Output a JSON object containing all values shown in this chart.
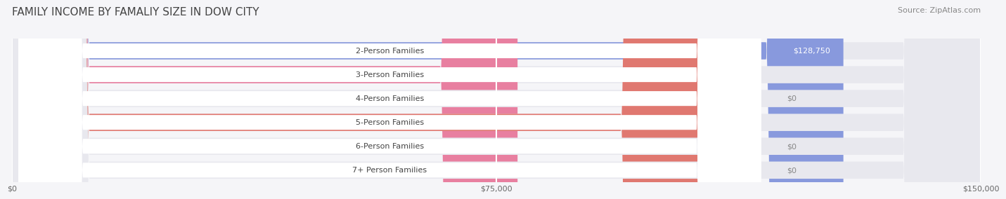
{
  "title": "FAMILY INCOME BY FAMALIY SIZE IN DOW CITY",
  "source": "Source: ZipAtlas.com",
  "categories": [
    "2-Person Families",
    "3-Person Families",
    "4-Person Families",
    "5-Person Families",
    "6-Person Families",
    "7+ Person Families"
  ],
  "values": [
    128750,
    78295,
    0,
    106250,
    0,
    0
  ],
  "bar_colors": [
    "#8899dd",
    "#e87fa0",
    "#f5c896",
    "#e07870",
    "#99aacc",
    "#bb99cc"
  ],
  "label_colors": [
    "#ffffff",
    "#666666",
    "#666666",
    "#ffffff",
    "#666666",
    "#666666"
  ],
  "bar_bg_color": "#e8e8ee",
  "label_bg_color": "#ffffff",
  "xlim": [
    0,
    150000
  ],
  "xticks": [
    0,
    75000,
    150000
  ],
  "xtick_labels": [
    "$0",
    "$75,000",
    "$150,000"
  ],
  "title_fontsize": 11,
  "source_fontsize": 8,
  "label_fontsize": 8,
  "value_fontsize": 8,
  "background_color": "#f5f5f8"
}
